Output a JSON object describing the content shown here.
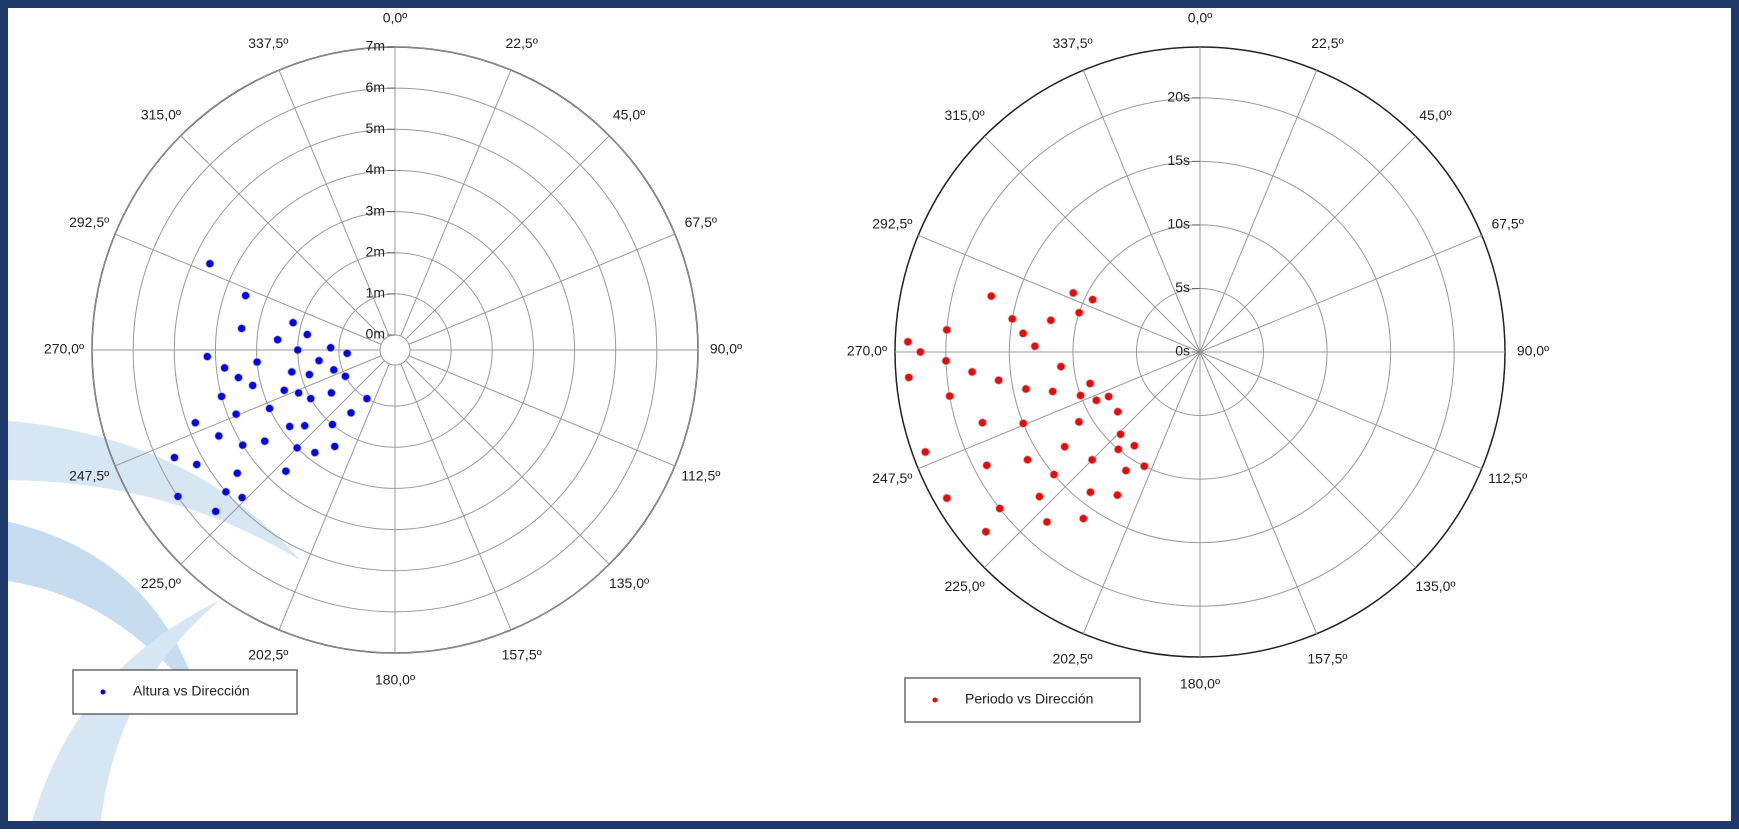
{
  "chart_data": [
    {
      "type": "polar-scatter",
      "rlim": [
        0,
        7
      ],
      "rticks": [
        {
          "value": 0,
          "label": "0m"
        },
        {
          "value": 1,
          "label": "1m"
        },
        {
          "value": 2,
          "label": "2m"
        },
        {
          "value": 3,
          "label": "3m"
        },
        {
          "value": 4,
          "label": "4m"
        },
        {
          "value": 5,
          "label": "5m"
        },
        {
          "value": 6,
          "label": "6m"
        },
        {
          "value": 7,
          "label": "7m"
        }
      ],
      "thetaticks": [
        {
          "value": 0,
          "label": "0,0º"
        },
        {
          "value": 22.5,
          "label": "22,5º"
        },
        {
          "value": 45,
          "label": "45,0º"
        },
        {
          "value": 67.5,
          "label": "67,5º"
        },
        {
          "value": 90,
          "label": "90,0º"
        },
        {
          "value": 112.5,
          "label": "112,5º"
        },
        {
          "value": 135,
          "label": "135,0º"
        },
        {
          "value": 157.5,
          "label": "157,5º"
        },
        {
          "value": 180,
          "label": "180,0º"
        },
        {
          "value": 202.5,
          "label": "202,5º"
        },
        {
          "value": 225,
          "label": "225,0º"
        },
        {
          "value": 247.5,
          "label": "247,5º"
        },
        {
          "value": 270,
          "label": "270,0º"
        },
        {
          "value": 292.5,
          "label": "292,5º"
        },
        {
          "value": 315,
          "label": "315,0º"
        },
        {
          "value": 337.5,
          "label": "337,5º"
        }
      ],
      "legend": "lower left",
      "series": [
        {
          "name": "Altura vs Dirección",
          "color": "#0000ff",
          "theta": [
            270,
            265,
            260,
            255,
            250,
            245,
            240,
            235,
            230,
            225,
            220,
            215,
            210,
            275,
            280,
            285,
            290,
            295,
            268,
            262,
            258,
            252,
            248,
            244,
            238,
            232,
            228,
            226,
            236,
            242,
            254,
            266,
            272,
            278,
            256,
            246,
            234,
            222,
            218,
            212,
            240,
            250,
            230,
            264,
            244,
            236
          ],
          "r": [
            2.0,
            3.0,
            3.5,
            4.0,
            2.5,
            3.0,
            2.0,
            3.5,
            2.5,
            3.0,
            2.0,
            1.5,
            1.0,
            2.5,
            1.8,
            2.2,
            3.5,
            4.6,
            4.2,
            1.5,
            2.2,
            1.2,
            3.8,
            4.4,
            4.0,
            4.5,
            5.5,
            4.8,
            1.5,
            1.0,
            1.8,
            0.8,
            1.2,
            3.4,
            3.2,
            2.2,
            2.8,
            3.6,
            2.8,
            2.4,
            5.2,
            4.8,
            5.0,
            3.8,
            5.6,
            6.0
          ]
        }
      ]
    },
    {
      "type": "polar-scatter",
      "rlim": [
        0,
        24
      ],
      "rticks": [
        {
          "value": 0,
          "label": "0s"
        },
        {
          "value": 5,
          "label": "5s"
        },
        {
          "value": 10,
          "label": "10s"
        },
        {
          "value": 15,
          "label": "15s"
        },
        {
          "value": 20,
          "label": "20s"
        }
      ],
      "thetaticks": [
        {
          "value": 0,
          "label": "0,0º"
        },
        {
          "value": 22.5,
          "label": "22,5º"
        },
        {
          "value": 45,
          "label": "45,0º"
        },
        {
          "value": 67.5,
          "label": "67,5º"
        },
        {
          "value": 90,
          "label": "90,0º"
        },
        {
          "value": 112.5,
          "label": "112,5º"
        },
        {
          "value": 135,
          "label": "135,0º"
        },
        {
          "value": 157.5,
          "label": "157,5º"
        },
        {
          "value": 180,
          "label": "180,0º"
        },
        {
          "value": 202.5,
          "label": "202,5º"
        },
        {
          "value": 225,
          "label": "225,0º"
        },
        {
          "value": 247.5,
          "label": "247,5º"
        },
        {
          "value": 270,
          "label": "270,0º"
        },
        {
          "value": 292.5,
          "label": "292,5º"
        },
        {
          "value": 315,
          "label": "315,0º"
        },
        {
          "value": 337.5,
          "label": "337,5º"
        }
      ],
      "legend": "lower left",
      "series": [
        {
          "name": "Periodo vs Dirección",
          "color": "#ff0000",
          "theta": [
            270,
            268,
            265,
            262,
            258,
            255,
            250,
            245,
            240,
            235,
            230,
            225,
            220,
            215,
            212,
            218,
            228,
            238,
            248,
            252,
            260,
            242,
            232,
            222,
            276,
            282,
            288,
            295,
            296,
            285,
            275,
            272,
            265,
            250,
            240,
            230,
            215,
            210,
            206,
            224,
            234,
            244,
            254,
            264,
            272,
            280
          ],
          "r": [
            22,
            20,
            18,
            16,
            14,
            12,
            10,
            9,
            11,
            13,
            15,
            12,
            10,
            9,
            11,
            14,
            17,
            16,
            15,
            18,
            20,
            19,
            20,
            18,
            14,
            12,
            10,
            11,
            9.4,
            17,
            20,
            23,
            23,
            23,
            23,
            22,
            16,
            13,
            10,
            9,
            8,
            8,
            9,
            11,
            13,
            15
          ]
        }
      ]
    }
  ]
}
